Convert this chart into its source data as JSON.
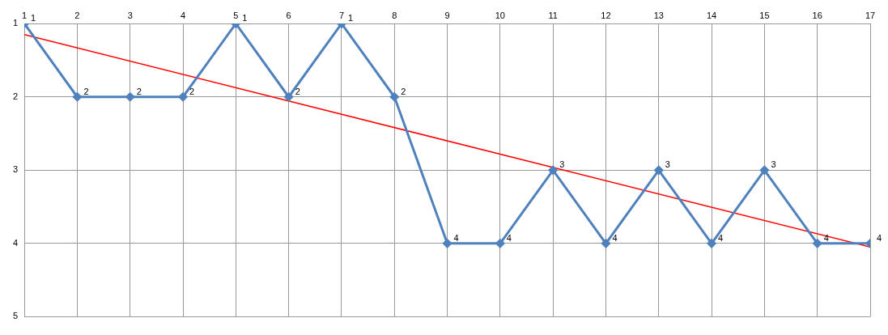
{
  "chart_data": {
    "type": "line",
    "x": [
      1,
      2,
      3,
      4,
      5,
      6,
      7,
      8,
      9,
      10,
      11,
      12,
      13,
      14,
      15,
      16,
      17
    ],
    "series": [
      {
        "color": "#4f81bd",
        "values": [
          1,
          2,
          2,
          2,
          1,
          2,
          1,
          2,
          4,
          4,
          3,
          4,
          3,
          4,
          3,
          4,
          4
        ],
        "marker": "diamond",
        "data_labels": true
      },
      {
        "type": "line",
        "color": "#ff0000",
        "x": [
          1,
          17
        ],
        "values": [
          1.15,
          4.05
        ],
        "marker": "none"
      }
    ],
    "xlim": [
      1,
      17
    ],
    "xticks": [
      1,
      2,
      3,
      4,
      5,
      6,
      7,
      8,
      9,
      10,
      11,
      12,
      13,
      14,
      15,
      16,
      17
    ],
    "ylim": [
      5,
      1
    ],
    "yticks": [
      1,
      2,
      3,
      4,
      5
    ],
    "grid": true,
    "legend": false
  }
}
